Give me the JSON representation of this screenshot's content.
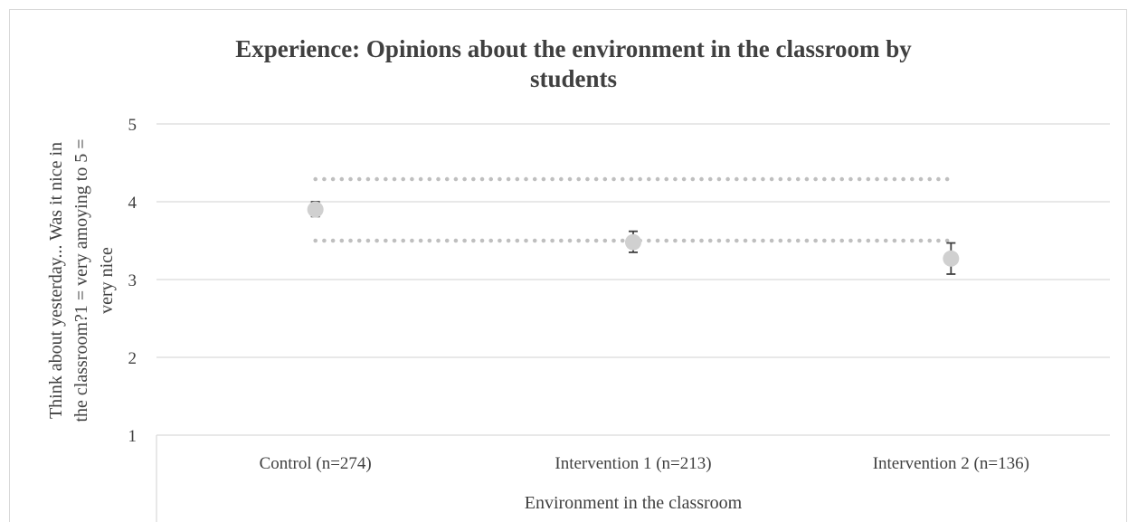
{
  "chart_data": {
    "type": "scatter",
    "title": "Experience: Opinions about the environment in the classroom by students",
    "title_lines": [
      "Experience: Opinions about the environment in the classroom by",
      "students"
    ],
    "xlabel": "Environment in the classroom",
    "ylabel": "Think about yesterday... Was it nice in the classroom?1 = very amoying to 5 = very nice",
    "ylabel_lines": [
      "Think about yesterday... Was it nice in",
      "the classroom?1 = very amoying to 5 =",
      "very nice"
    ],
    "categories": [
      "Control (n=274)",
      "Intervention 1 (n=213)",
      "Intervention 2 (n=136)"
    ],
    "ylim": [
      1,
      5
    ],
    "yticks": [
      1,
      2,
      3,
      4,
      5
    ],
    "grid": true,
    "series": [
      {
        "values": [
          3.9,
          3.48,
          3.27
        ],
        "error_low": [
          3.81,
          3.35,
          3.07
        ],
        "error_high": [
          4.0,
          3.62,
          3.47
        ]
      }
    ],
    "reference_lines": [
      4.29,
      3.5
    ],
    "colors": {
      "marker": "#d0d0d0",
      "error_bar": "#404040",
      "reference": "#bfbfbf",
      "grid": "#d9d9d9",
      "text": "#404040"
    }
  }
}
